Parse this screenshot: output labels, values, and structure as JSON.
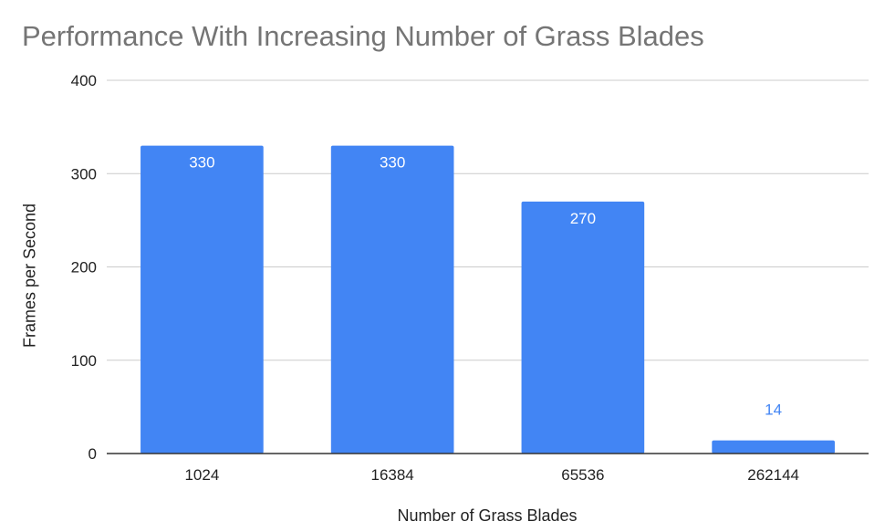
{
  "chart_data": {
    "type": "bar",
    "title": "Performance With Increasing Number of Grass Blades",
    "xlabel": "Number of Grass Blades",
    "ylabel": "Frames per Second",
    "categories": [
      "1024",
      "16384",
      "65536",
      "262144"
    ],
    "values": [
      330,
      330,
      270,
      14
    ],
    "ylim": [
      0,
      400
    ],
    "yticks": [
      0,
      100,
      200,
      300,
      400
    ],
    "grid": true,
    "legend": "none",
    "data_labels": true,
    "colors": {
      "bar": "#4285F4",
      "label_inside": "#ffffff",
      "label_outside": "#4285F4",
      "grid": "#cccccc",
      "baseline": "#333333"
    }
  }
}
